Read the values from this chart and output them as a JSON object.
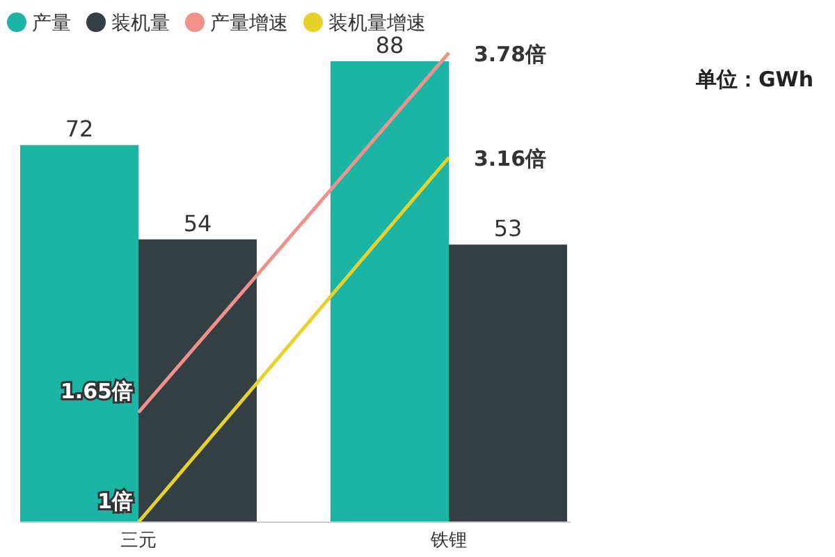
{
  "chart_data": {
    "type": "bar",
    "categories": [
      "三元",
      "铁锂"
    ],
    "series": [
      {
        "name": "产量",
        "color": "#1ab5a5",
        "values": [
          72,
          88
        ],
        "value_labels": [
          "72",
          "88"
        ]
      },
      {
        "name": "装机量",
        "color": "#333f42",
        "values": [
          54,
          53
        ],
        "value_labels": [
          "54",
          "53"
        ]
      },
      {
        "name": "产量增速",
        "type": "line",
        "axis": "y2",
        "color": "#f0928a",
        "values": [
          1.65,
          3.78
        ],
        "value_labels": [
          "1.65倍",
          "3.78倍"
        ]
      },
      {
        "name": "装机量增速",
        "type": "line",
        "axis": "y2",
        "color": "#e8d22a",
        "values": [
          1,
          3.16
        ],
        "value_labels": [
          "1倍",
          "3.16倍"
        ]
      }
    ],
    "legend": "top left",
    "annotations": [
      "单位：GWh"
    ]
  }
}
